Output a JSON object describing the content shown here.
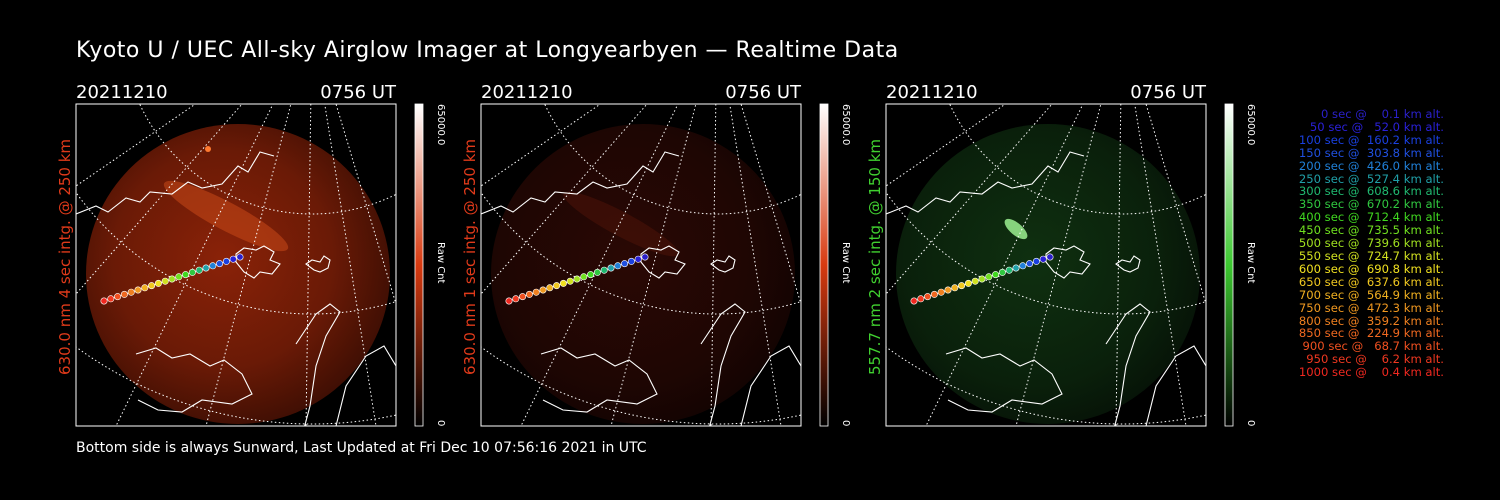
{
  "header": {
    "title": "Kyoto U / UEC All-sky Airglow Imager at Longyearbyen — Realtime Data"
  },
  "panels": [
    {
      "date": "20211210",
      "time": "0756 UT",
      "side_label": "630.0 nm  4 sec intg. @ 250 km",
      "side_color": "#e03a1a",
      "cb_max": "65000.0",
      "cb_label": "Raw Cnt",
      "cb_min": "0",
      "tint": "red"
    },
    {
      "date": "20211210",
      "time": "0756 UT",
      "side_label": "630.0 nm  1 sec intg. @ 250 km",
      "side_color": "#e03a1a",
      "cb_max": "65000.0",
      "cb_label": "Raw Cnt",
      "cb_min": "0",
      "tint": "darkred"
    },
    {
      "date": "20211210",
      "time": "0756 UT",
      "side_label": "557.7 nm  2 sec intg. @ 150 km",
      "side_color": "#40d030",
      "cb_max": "65000.0",
      "cb_label": "Raw Cnt",
      "cb_min": "0",
      "tint": "green"
    }
  ],
  "legend": [
    {
      "text": "0 sec @    0.1 km alt.",
      "color": "#2a20c8"
    },
    {
      "text": "50 sec @   52.0 km alt.",
      "color": "#2a20d8"
    },
    {
      "text": "100 sec @  160.2 km alt.",
      "color": "#1a40e0"
    },
    {
      "text": "150 sec @  303.8 km alt.",
      "color": "#2050e0"
    },
    {
      "text": "200 sec @  426.0 km alt.",
      "color": "#2080d8"
    },
    {
      "text": "250 sec @  527.4 km alt.",
      "color": "#20a0a8"
    },
    {
      "text": "300 sec @  608.6 km alt.",
      "color": "#20b870"
    },
    {
      "text": "350 sec @  670.2 km alt.",
      "color": "#30c840"
    },
    {
      "text": "400 sec @  712.4 km alt.",
      "color": "#40d820"
    },
    {
      "text": "450 sec @  735.5 km alt.",
      "color": "#70e020"
    },
    {
      "text": "500 sec @  739.6 km alt.",
      "color": "#a0e020"
    },
    {
      "text": "550 sec @  724.7 km alt.",
      "color": "#d0e020"
    },
    {
      "text": "600 sec @  690.8 km alt.",
      "color": "#f0e020"
    },
    {
      "text": "650 sec @  637.6 km alt.",
      "color": "#f0c820"
    },
    {
      "text": "700 sec @  564.9 km alt.",
      "color": "#f0b020"
    },
    {
      "text": "750 sec @  472.3 km alt.",
      "color": "#f09820"
    },
    {
      "text": "800 sec @  359.2 km alt.",
      "color": "#f08020"
    },
    {
      "text": "850 sec @  224.9 km alt.",
      "color": "#f06820"
    },
    {
      "text": "900 sec @   68.7 km alt.",
      "color": "#f05020"
    },
    {
      "text": "950 sec @    6.2 km alt.",
      "color": "#f03820"
    },
    {
      "text": "1000 sec @    0.4 km alt.",
      "color": "#f02820"
    }
  ],
  "footer": {
    "text": "Bottom side is always Sunward, Last Updated at Fri Dec 10 07:56:16 2021 in UTC"
  }
}
